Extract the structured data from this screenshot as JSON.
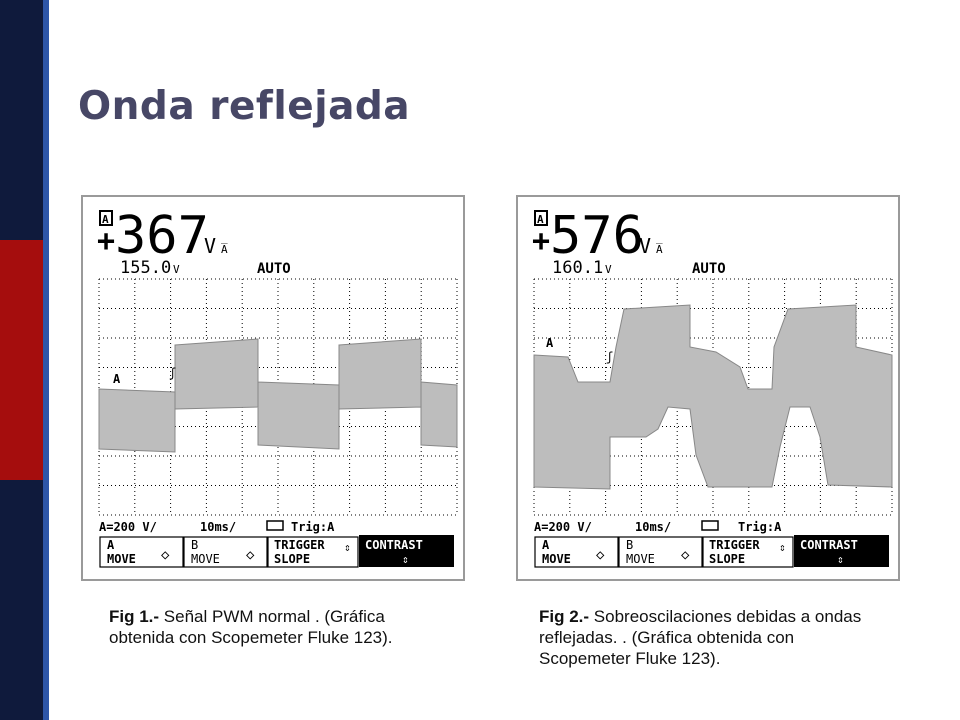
{
  "slide": {
    "title": "Onda reflejada",
    "colors": {
      "bar_navy": "#0f1a3c",
      "bar_red": "#a50d0d",
      "bar_line": "#2e56a8",
      "title": "#474766",
      "trace": "#bdbdbd"
    }
  },
  "fig1": {
    "reading_main": "367",
    "reading_unit": "V",
    "reading_sub": "155.0",
    "reading_sub_unit": "V",
    "mode": "AUTO",
    "channel_marker": "A",
    "status_scale": "A=200 V/",
    "status_time": "10ms/",
    "status_trig": "Trig:A",
    "softkeys": [
      {
        "line1": "A",
        "line2": "MOVE",
        "symbol": "◇"
      },
      {
        "line1": "B",
        "line2": "MOVE",
        "symbol": "◇"
      },
      {
        "line1": "TRIGGER",
        "line2": "SLOPE",
        "symbol": "⇕"
      },
      {
        "line1": "CONTRAST",
        "line2": "",
        "symbol": "⇕"
      }
    ],
    "caption_label": "Fig 1.-",
    "caption_text": " Señal PWM normal . (Gráfica obtenida con Scopemeter Fluke 123)."
  },
  "fig2": {
    "reading_main": "576",
    "reading_unit": "V",
    "reading_sub": "160.1",
    "reading_sub_unit": "V",
    "mode": "AUTO",
    "channel_marker": "A",
    "status_scale": "A=200 V/",
    "status_time": "10ms/",
    "status_trig": "Trig:A",
    "softkeys": [
      {
        "line1": "A",
        "line2": "MOVE",
        "symbol": "◇"
      },
      {
        "line1": "B",
        "line2": "MOVE",
        "symbol": "◇"
      },
      {
        "line1": "TRIGGER",
        "line2": "SLOPE",
        "symbol": "⇕"
      },
      {
        "line1": "CONTRAST",
        "line2": "",
        "symbol": "⇕"
      }
    ],
    "caption_label": "Fig 2.-",
    "caption_text": " Sobreoscilaciones debidas a ondas reflejadas. . (Gráfica obtenida con Scopemeter Fluke 123)."
  }
}
